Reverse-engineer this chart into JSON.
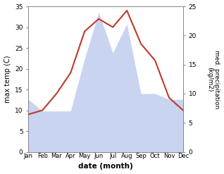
{
  "months": [
    "Jan",
    "Feb",
    "Mar",
    "Apr",
    "May",
    "Jun",
    "Jul",
    "Aug",
    "Sep",
    "Oct",
    "Nov",
    "Dec"
  ],
  "temperature": [
    9,
    10,
    14,
    19,
    29,
    32,
    30,
    34,
    26,
    22,
    13,
    10
  ],
  "precipitation": [
    9,
    7,
    7,
    7,
    16,
    24,
    17,
    22,
    10,
    10,
    9,
    9
  ],
  "temp_color": "#c0392b",
  "precip_color_fill": "#c8d4f0",
  "left_ylim": [
    0,
    35
  ],
  "right_ylim": [
    0,
    25
  ],
  "left_yticks": [
    0,
    5,
    10,
    15,
    20,
    25,
    30,
    35
  ],
  "right_yticks": [
    0,
    5,
    10,
    15,
    20,
    25
  ],
  "xlabel": "date (month)",
  "ylabel_left": "max temp (C)",
  "ylabel_right": "med. precipitation\n(kg/m2)"
}
